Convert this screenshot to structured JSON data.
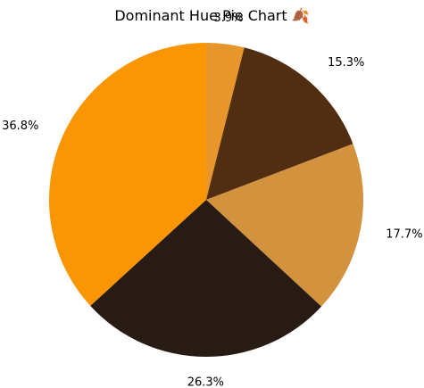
{
  "chart_data": {
    "type": "pie",
    "title": "Dominant Hue Pie Chart 🍂",
    "slices": [
      {
        "value": 3.9,
        "label": "3.9%",
        "color": "#E6962B"
      },
      {
        "value": 15.3,
        "label": "15.3%",
        "color": "#512D12"
      },
      {
        "value": 17.7,
        "label": "17.7%",
        "color": "#D3923E"
      },
      {
        "value": 26.3,
        "label": "26.3%",
        "color": "#281B14"
      },
      {
        "value": 36.8,
        "label": "36.8%",
        "color": "#FA9604"
      }
    ],
    "start_angle_deg": 90,
    "direction": "clockwise",
    "legend": "none"
  }
}
